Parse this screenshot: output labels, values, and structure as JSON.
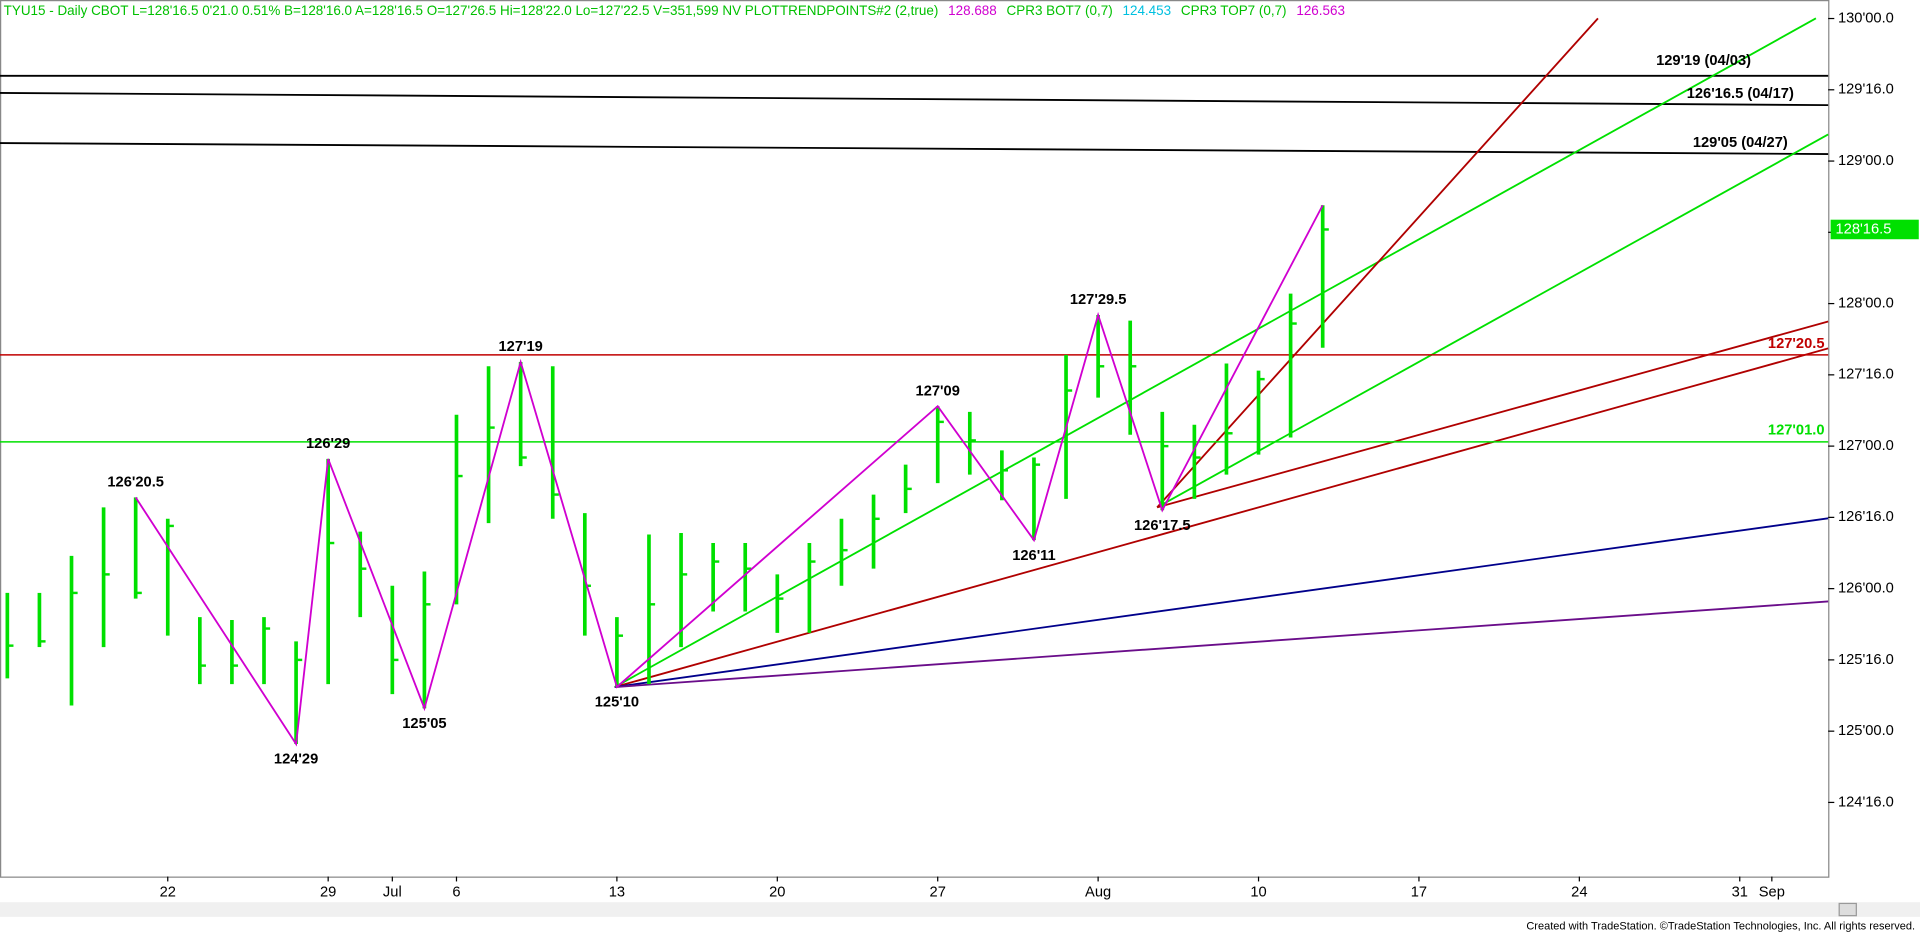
{
  "header": {
    "segments": [
      {
        "text": "TYU15 - Daily  CBOT  L=128'16.5  0'21.0  0.51%  B=128'16.0  A=128'16.5  O=127'26.5  Hi=128'22.0  Lo=127'22.5  V=351,599  NV  PLOTTRENDPOINTS#2 (2,true)",
        "color": "#00c000"
      },
      {
        "text": "128.688",
        "color": "#d000d0"
      },
      {
        "text": "CPR3 BOT7 (0,7)",
        "color": "#00c000"
      },
      {
        "text": "124.453",
        "color": "#00c0e0"
      },
      {
        "text": "CPR3 TOP7 (0,7)",
        "color": "#00c000"
      },
      {
        "text": "126.563",
        "color": "#d000d0"
      }
    ]
  },
  "chart_data": {
    "type": "ohlc",
    "color": "#00e000",
    "categories": [
      null,
      null,
      null,
      null,
      null,
      "22",
      null,
      null,
      null,
      null,
      "29",
      null,
      "Jul",
      null,
      "6",
      null,
      null,
      null,
      null,
      "13",
      null,
      null,
      null,
      null,
      "20",
      null,
      null,
      null,
      null,
      "27",
      null,
      null,
      null,
      null,
      "Aug",
      null,
      null,
      null,
      null,
      "10",
      null,
      null,
      null,
      null,
      "17",
      null,
      null,
      null,
      null,
      "24",
      null,
      null,
      null,
      null,
      "31",
      "Sep"
    ],
    "high": [
      125.97,
      125.97,
      126.23,
      126.57,
      126.64,
      126.49,
      125.8,
      125.78,
      125.8,
      125.63,
      126.91,
      126.4,
      126.02,
      126.12,
      127.22,
      127.56,
      127.59,
      127.56,
      126.53,
      125.8,
      126.38,
      126.39,
      126.32,
      126.32,
      126.1,
      126.32,
      126.49,
      126.66,
      126.87,
      127.28,
      127.24,
      126.97,
      126.92,
      127.64,
      127.92,
      127.88,
      127.24,
      127.15,
      127.58,
      127.53,
      128.07,
      128.69,
      null,
      null,
      null,
      null,
      null,
      null,
      null,
      null,
      null,
      null,
      null,
      null,
      null,
      null
    ],
    "low": [
      125.37,
      125.59,
      125.18,
      125.59,
      125.93,
      125.67,
      125.33,
      125.33,
      125.33,
      124.91,
      125.33,
      125.8,
      125.26,
      125.16,
      125.89,
      126.46,
      126.86,
      126.49,
      125.67,
      125.31,
      125.33,
      125.59,
      125.84,
      125.84,
      125.69,
      125.69,
      126.02,
      126.14,
      126.53,
      126.74,
      126.8,
      126.62,
      126.34,
      126.63,
      127.34,
      127.08,
      126.55,
      126.63,
      126.8,
      126.94,
      127.06,
      127.69,
      null,
      null,
      null,
      null,
      null,
      null,
      null,
      null,
      null,
      null,
      null,
      null,
      null,
      null
    ],
    "close": [
      125.6,
      125.63,
      125.97,
      126.1,
      125.97,
      126.44,
      125.46,
      125.46,
      125.72,
      125.5,
      126.32,
      126.14,
      125.5,
      125.89,
      126.79,
      127.13,
      126.92,
      126.66,
      126.02,
      125.67,
      125.89,
      126.1,
      126.19,
      126.14,
      125.93,
      126.19,
      126.27,
      126.49,
      126.7,
      127.17,
      127.04,
      126.83,
      126.87,
      127.39,
      127.56,
      127.56,
      127.0,
      126.92,
      127.09,
      127.47,
      127.86,
      128.52,
      null,
      null,
      null,
      null,
      null,
      null,
      null,
      null,
      null,
      null,
      null,
      null,
      null,
      null
    ],
    "ylim": [
      123.98,
      130.13
    ],
    "yticks": [
      {
        "value": 130,
        "label": "130'00.0"
      },
      {
        "value": 129.5,
        "label": "129'16.0"
      },
      {
        "value": 129,
        "label": "129'00.0"
      },
      {
        "value": 128.5,
        "label": "128'16.0"
      },
      {
        "value": 128,
        "label": "128'00.0"
      },
      {
        "value": 127.5,
        "label": "127'16.0"
      },
      {
        "value": 127,
        "label": "127'00.0"
      },
      {
        "value": 126.5,
        "label": "126'16.0"
      },
      {
        "value": 126,
        "label": "126'00.0"
      },
      {
        "value": 125.5,
        "label": "125'16.0"
      },
      {
        "value": 125,
        "label": "125'00.0"
      },
      {
        "value": 124.5,
        "label": "124'16.0"
      }
    ],
    "last": {
      "value": 128.52,
      "label": "128'16.5"
    },
    "swings": [
      {
        "label": "126'20.5",
        "value": 126.64
      },
      {
        "label": "124'29",
        "value": 124.91
      },
      {
        "label": "126'29",
        "value": 126.91
      },
      {
        "label": "125'05",
        "value": 125.16
      },
      {
        "label": "127'19",
        "value": 127.59
      },
      {
        "label": "125'10",
        "value": 125.31
      },
      {
        "label": "127'09",
        "value": 127.28
      },
      {
        "label": "126'11",
        "value": 126.34
      },
      {
        "label": "127'29.5",
        "value": 127.92
      },
      {
        "label": "126'17.5",
        "value": 126.55
      }
    ],
    "swing_color": "#d000d0",
    "levels": [
      {
        "value": 127.64,
        "label": "127'20.5",
        "color": "#c00000"
      },
      {
        "value": 127.03,
        "label": "127'01.0",
        "color": "#00e000"
      }
    ],
    "annotations": [
      "129'19 (04/03)",
      "126'16.5 (04/17)",
      "129'05 (04/27)"
    ]
  },
  "footer": "Created with TradeStation. ©TradeStation Technologies, Inc. All rights reserved."
}
